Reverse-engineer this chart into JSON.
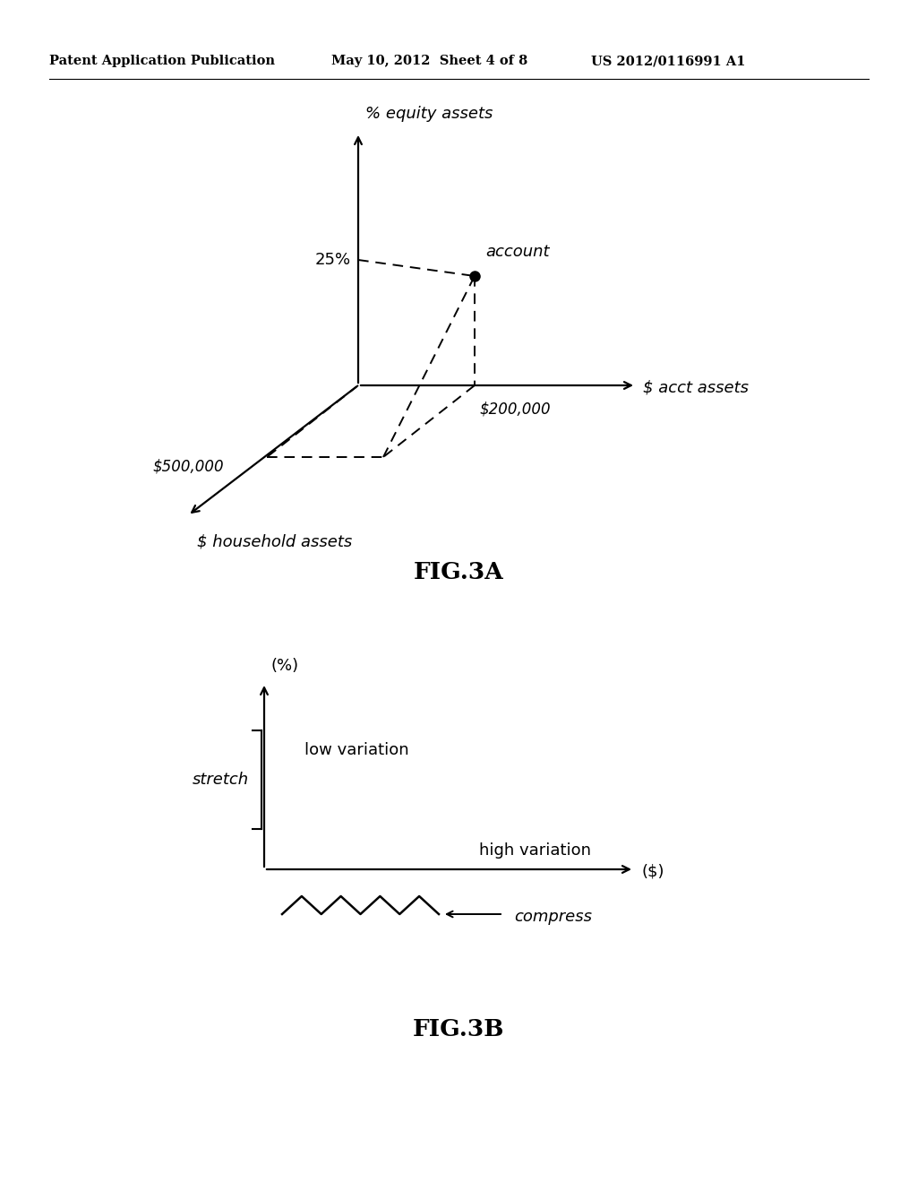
{
  "bg_color": "#ffffff",
  "header_left": "Patent Application Publication",
  "header_mid": "May 10, 2012  Sheet 4 of 8",
  "header_right": "US 2012/0116991 A1",
  "fig3a_label": "FIG.3A",
  "fig3b_label": "FIG.3B",
  "fig3a": {
    "y_axis_label": "% equity assets",
    "x_axis_label": "$ acct assets",
    "z_axis_label": "$ household assets",
    "label_25pct": "25%",
    "label_200k": "$200,000",
    "label_500k": "$500,000",
    "label_account": "account"
  },
  "fig3b": {
    "y_axis_label": "(%)",
    "x_axis_label": "($)",
    "label_low_variation": "low variation",
    "label_high_variation": "high variation",
    "label_stretch": "stretch",
    "label_compress": "compress"
  }
}
